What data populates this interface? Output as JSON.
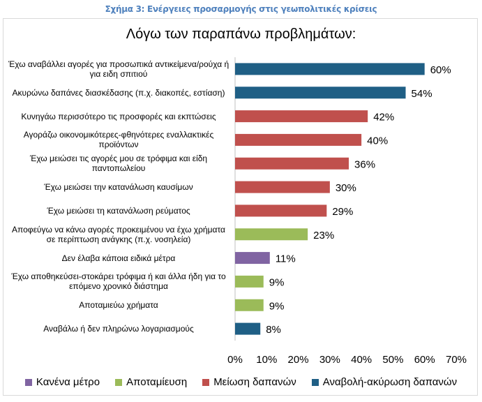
{
  "caption": "Σχήμα 3: Ενέργειες προσαρμογής στις γεωπολιτικές κρίσεις",
  "chart_data": {
    "type": "bar",
    "orientation": "horizontal",
    "title": "Λόγω των παραπάνω προβλημάτων:",
    "categories": [
      "Έχω αναβάλλει αγορές για προσωπικά αντικείμενα/ρούχα ή για ειδη σπιτιού",
      "Ακυρώνω δαπάνες διασκέδασης (π.χ. διακοπές, εστίαση)",
      "Κυνηγάω περισσότερο τις προσφορές και εκπτώσεις",
      "Αγοράζω οικονομικότερες-φθηνότερες εναλλακτικές προϊόντων",
      "Έχω μειώσει τις αγορές μου σε τρόφιμα και είδη παντοπωλείου",
      "Έχω μειώσει την κατανάλωση καυσίμων",
      "Έχω μειώσει τη κατανάλωση ρεύματος",
      "Αποφεύγω να κάνω αγορές προκειμένου να έχω χρήματα σε περίπτωση ανάγκης (π.χ. νοσηλεία)",
      "Δεν έλαβα κάποια ειδικά μέτρα",
      "Έχω αποθηκεύσει-στοκάρει τρόφιμα ή και άλλα ήδη για το επόμενο χρονικό διάστημα",
      "Αποταμιεύω χρήματα",
      "Αναβάλω ή δεν πληρώνω λογαριασμούς"
    ],
    "values": [
      60,
      54,
      42,
      40,
      36,
      30,
      29,
      23,
      11,
      9,
      9,
      8
    ],
    "data_labels": [
      "60%",
      "54%",
      "42%",
      "40%",
      "36%",
      "30%",
      "29%",
      "23%",
      "11%",
      "9%",
      "9%",
      "8%"
    ],
    "groups": [
      3,
      3,
      2,
      2,
      2,
      2,
      2,
      1,
      0,
      1,
      1,
      3
    ],
    "series": [
      {
        "name": "Κανένα μέτρο",
        "color": "#8064a2"
      },
      {
        "name": "Αποταμίευση",
        "color": "#9bbb59"
      },
      {
        "name": "Μείωση δαπανών",
        "color": "#c0504d"
      },
      {
        "name": "Αναβολή-ακύρωση δαπανών",
        "color": "#1f5f85"
      }
    ],
    "xlim": [
      0,
      70
    ],
    "xticks": [
      "0%",
      "10%",
      "20%",
      "30%",
      "40%",
      "50%",
      "60%",
      "70%"
    ],
    "grid": false,
    "legend": "bottom"
  }
}
